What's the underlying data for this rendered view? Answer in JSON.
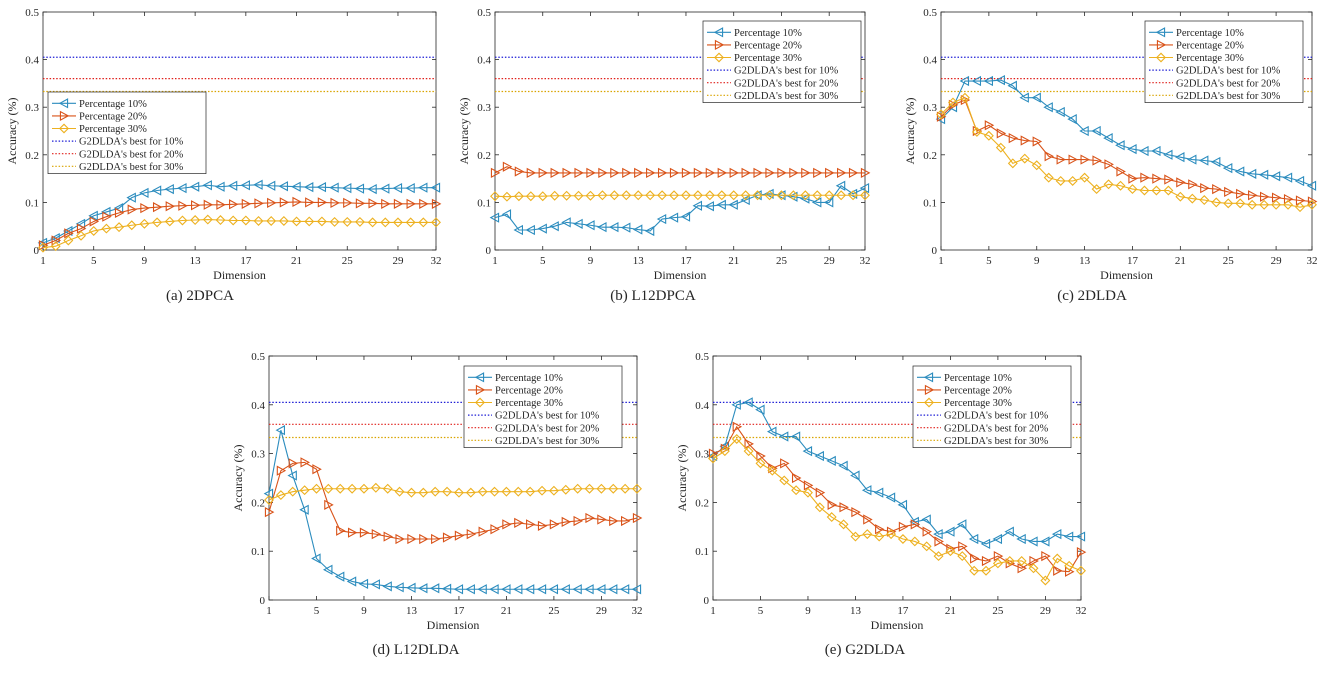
{
  "figure": {
    "legend_labels": [
      "Percentage 10%",
      "Percentage 20%",
      "Percentage 30%",
      "G2DLDA's best for 10%",
      "G2DLDA's best for 20%",
      "G2DLDA's best for 30%"
    ],
    "series_colors": [
      "#2b8cbe",
      "#d95319",
      "#edb120"
    ],
    "reference_colors": [
      "#1f1fd6",
      "#e0201b",
      "#d9a400"
    ],
    "reference_values": [
      0.405,
      0.36,
      0.333
    ]
  },
  "chart_data": [
    {
      "type": "line",
      "caption": "(a) 2DPCA",
      "xlabel": "Dimension",
      "ylabel": "Accuracy (%)",
      "xlim": [
        1,
        32
      ],
      "ylim": [
        0,
        0.5
      ],
      "xticks": [
        1,
        5,
        9,
        13,
        17,
        21,
        25,
        29,
        32
      ],
      "yticks": [
        0,
        0.1,
        0.2,
        0.3,
        0.4,
        0.5
      ],
      "legend_position": "middle-left",
      "x": [
        1,
        2,
        3,
        4,
        5,
        6,
        7,
        8,
        9,
        10,
        11,
        12,
        13,
        14,
        15,
        16,
        17,
        18,
        19,
        20,
        21,
        22,
        23,
        24,
        25,
        26,
        27,
        28,
        29,
        30,
        31,
        32
      ],
      "series": [
        {
          "name": "Percentage 10%",
          "values": [
            0.015,
            0.025,
            0.04,
            0.055,
            0.072,
            0.08,
            0.088,
            0.11,
            0.12,
            0.125,
            0.128,
            0.13,
            0.133,
            0.136,
            0.133,
            0.135,
            0.136,
            0.137,
            0.135,
            0.134,
            0.133,
            0.132,
            0.132,
            0.131,
            0.13,
            0.129,
            0.128,
            0.129,
            0.13,
            0.13,
            0.131,
            0.131
          ]
        },
        {
          "name": "Percentage 20%",
          "values": [
            0.01,
            0.02,
            0.035,
            0.045,
            0.06,
            0.07,
            0.078,
            0.085,
            0.088,
            0.09,
            0.092,
            0.093,
            0.094,
            0.095,
            0.095,
            0.096,
            0.097,
            0.098,
            0.099,
            0.1,
            0.101,
            0.1,
            0.1,
            0.099,
            0.099,
            0.098,
            0.098,
            0.097,
            0.097,
            0.097,
            0.097,
            0.097
          ]
        },
        {
          "name": "Percentage 30%",
          "values": [
            0.005,
            0.008,
            0.02,
            0.03,
            0.04,
            0.045,
            0.048,
            0.052,
            0.055,
            0.058,
            0.06,
            0.062,
            0.063,
            0.064,
            0.063,
            0.062,
            0.062,
            0.061,
            0.061,
            0.061,
            0.06,
            0.06,
            0.06,
            0.059,
            0.059,
            0.059,
            0.058,
            0.058,
            0.058,
            0.058,
            0.058,
            0.058
          ]
        }
      ]
    },
    {
      "type": "line",
      "caption": "(b) L12DPCA",
      "xlabel": "Dimension",
      "ylabel": "Accuracy (%)",
      "xlim": [
        1,
        32
      ],
      "ylim": [
        0,
        0.5
      ],
      "xticks": [
        1,
        5,
        9,
        13,
        17,
        21,
        25,
        29,
        32
      ],
      "yticks": [
        0,
        0.1,
        0.2,
        0.3,
        0.4,
        0.5
      ],
      "legend_position": "top-right",
      "x": [
        1,
        2,
        3,
        4,
        5,
        6,
        7,
        8,
        9,
        10,
        11,
        12,
        13,
        14,
        15,
        16,
        17,
        18,
        19,
        20,
        21,
        22,
        23,
        24,
        25,
        26,
        27,
        28,
        29,
        30,
        31,
        32
      ],
      "series": [
        {
          "name": "Percentage 10%",
          "values": [
            0.068,
            0.075,
            0.042,
            0.042,
            0.045,
            0.05,
            0.058,
            0.055,
            0.052,
            0.048,
            0.048,
            0.047,
            0.043,
            0.04,
            0.065,
            0.068,
            0.07,
            0.093,
            0.092,
            0.095,
            0.095,
            0.105,
            0.115,
            0.118,
            0.115,
            0.112,
            0.108,
            0.1,
            0.1,
            0.135,
            0.118,
            0.13
          ]
        },
        {
          "name": "Percentage 20%",
          "values": [
            0.162,
            0.175,
            0.165,
            0.162,
            0.162,
            0.162,
            0.162,
            0.162,
            0.162,
            0.162,
            0.162,
            0.162,
            0.162,
            0.162,
            0.162,
            0.162,
            0.162,
            0.162,
            0.162,
            0.162,
            0.162,
            0.162,
            0.162,
            0.162,
            0.162,
            0.162,
            0.162,
            0.162,
            0.162,
            0.162,
            0.162,
            0.162
          ]
        },
        {
          "name": "Percentage 30%",
          "values": [
            0.113,
            0.112,
            0.113,
            0.113,
            0.113,
            0.114,
            0.114,
            0.114,
            0.114,
            0.115,
            0.115,
            0.115,
            0.115,
            0.115,
            0.115,
            0.115,
            0.115,
            0.115,
            0.115,
            0.115,
            0.115,
            0.115,
            0.115,
            0.115,
            0.115,
            0.115,
            0.115,
            0.115,
            0.115,
            0.115,
            0.115,
            0.115
          ]
        }
      ]
    },
    {
      "type": "line",
      "caption": "(c) 2DLDA",
      "xlabel": "Dimension",
      "ylabel": "Accuracy (%)",
      "xlim": [
        1,
        32
      ],
      "ylim": [
        0,
        0.5
      ],
      "xticks": [
        1,
        5,
        9,
        13,
        17,
        21,
        25,
        29,
        32
      ],
      "yticks": [
        0,
        0.1,
        0.2,
        0.3,
        0.4,
        0.5
      ],
      "legend_position": "top-right",
      "x": [
        1,
        2,
        3,
        4,
        5,
        6,
        7,
        8,
        9,
        10,
        11,
        12,
        13,
        14,
        15,
        16,
        17,
        18,
        19,
        20,
        21,
        22,
        23,
        24,
        25,
        26,
        27,
        28,
        29,
        30,
        31,
        32
      ],
      "series": [
        {
          "name": "Percentage 10%",
          "values": [
            0.275,
            0.3,
            0.355,
            0.355,
            0.355,
            0.357,
            0.345,
            0.32,
            0.32,
            0.3,
            0.29,
            0.275,
            0.25,
            0.25,
            0.235,
            0.22,
            0.212,
            0.208,
            0.208,
            0.2,
            0.195,
            0.19,
            0.188,
            0.185,
            0.172,
            0.165,
            0.16,
            0.158,
            0.155,
            0.152,
            0.145,
            0.135
          ]
        },
        {
          "name": "Percentage 20%",
          "values": [
            0.28,
            0.305,
            0.315,
            0.25,
            0.262,
            0.245,
            0.235,
            0.23,
            0.228,
            0.197,
            0.19,
            0.19,
            0.19,
            0.188,
            0.18,
            0.165,
            0.15,
            0.152,
            0.15,
            0.148,
            0.142,
            0.138,
            0.13,
            0.128,
            0.122,
            0.118,
            0.115,
            0.112,
            0.11,
            0.107,
            0.104,
            0.102
          ]
        },
        {
          "name": "Percentage 30%",
          "values": [
            0.285,
            0.31,
            0.32,
            0.248,
            0.24,
            0.215,
            0.182,
            0.192,
            0.178,
            0.152,
            0.145,
            0.145,
            0.152,
            0.128,
            0.138,
            0.135,
            0.128,
            0.125,
            0.125,
            0.125,
            0.112,
            0.108,
            0.105,
            0.1,
            0.098,
            0.098,
            0.095,
            0.095,
            0.095,
            0.095,
            0.09,
            0.095
          ]
        }
      ]
    },
    {
      "type": "line",
      "caption": "(d) L12DLDA",
      "xlabel": "Dimension",
      "ylabel": "Accuracy (%)",
      "xlim": [
        1,
        32
      ],
      "ylim": [
        0,
        0.5
      ],
      "xticks": [
        1,
        5,
        9,
        13,
        17,
        21,
        25,
        29,
        32
      ],
      "yticks": [
        0,
        0.1,
        0.2,
        0.3,
        0.4,
        0.5
      ],
      "legend_position": "top-right",
      "x": [
        1,
        2,
        3,
        4,
        5,
        6,
        7,
        8,
        9,
        10,
        11,
        12,
        13,
        14,
        15,
        16,
        17,
        18,
        19,
        20,
        21,
        22,
        23,
        24,
        25,
        26,
        27,
        28,
        29,
        30,
        31,
        32
      ],
      "series": [
        {
          "name": "Percentage 10%",
          "values": [
            0.218,
            0.348,
            0.255,
            0.185,
            0.085,
            0.062,
            0.048,
            0.038,
            0.033,
            0.032,
            0.028,
            0.026,
            0.025,
            0.024,
            0.024,
            0.023,
            0.022,
            0.022,
            0.022,
            0.022,
            0.022,
            0.022,
            0.022,
            0.022,
            0.022,
            0.022,
            0.022,
            0.022,
            0.022,
            0.022,
            0.022,
            0.022
          ]
        },
        {
          "name": "Percentage 20%",
          "values": [
            0.18,
            0.265,
            0.28,
            0.282,
            0.268,
            0.195,
            0.142,
            0.138,
            0.138,
            0.135,
            0.13,
            0.125,
            0.125,
            0.125,
            0.125,
            0.128,
            0.132,
            0.135,
            0.14,
            0.145,
            0.155,
            0.158,
            0.155,
            0.152,
            0.155,
            0.16,
            0.162,
            0.168,
            0.165,
            0.162,
            0.162,
            0.168
          ]
        },
        {
          "name": "Percentage 30%",
          "values": [
            0.205,
            0.215,
            0.222,
            0.225,
            0.228,
            0.228,
            0.228,
            0.228,
            0.228,
            0.23,
            0.228,
            0.222,
            0.22,
            0.22,
            0.222,
            0.222,
            0.22,
            0.22,
            0.222,
            0.222,
            0.222,
            0.222,
            0.222,
            0.224,
            0.224,
            0.226,
            0.228,
            0.228,
            0.228,
            0.228,
            0.228,
            0.228
          ]
        }
      ]
    },
    {
      "type": "line",
      "caption": "(e) G2DLDA",
      "xlabel": "Dimension",
      "ylabel": "Accuracy (%)",
      "xlim": [
        1,
        32
      ],
      "ylim": [
        0,
        0.5
      ],
      "xticks": [
        1,
        5,
        9,
        13,
        17,
        21,
        25,
        29,
        32
      ],
      "yticks": [
        0,
        0.1,
        0.2,
        0.3,
        0.4,
        0.5
      ],
      "legend_position": "top-right",
      "x": [
        1,
        2,
        3,
        4,
        5,
        6,
        7,
        8,
        9,
        10,
        11,
        12,
        13,
        14,
        15,
        16,
        17,
        18,
        19,
        20,
        21,
        22,
        23,
        24,
        25,
        26,
        27,
        28,
        29,
        30,
        31,
        32
      ],
      "series": [
        {
          "name": "Percentage 10%",
          "values": [
            0.295,
            0.315,
            0.4,
            0.405,
            0.39,
            0.345,
            0.335,
            0.335,
            0.305,
            0.295,
            0.285,
            0.275,
            0.255,
            0.225,
            0.22,
            0.21,
            0.195,
            0.16,
            0.165,
            0.135,
            0.14,
            0.155,
            0.125,
            0.115,
            0.125,
            0.14,
            0.125,
            0.12,
            0.12,
            0.135,
            0.13,
            0.13
          ]
        },
        {
          "name": "Percentage 20%",
          "values": [
            0.3,
            0.31,
            0.355,
            0.32,
            0.295,
            0.27,
            0.28,
            0.25,
            0.235,
            0.22,
            0.195,
            0.19,
            0.18,
            0.165,
            0.145,
            0.14,
            0.15,
            0.155,
            0.14,
            0.12,
            0.105,
            0.11,
            0.085,
            0.08,
            0.09,
            0.075,
            0.065,
            0.08,
            0.09,
            0.06,
            0.058,
            0.098
          ]
        },
        {
          "name": "Percentage 30%",
          "values": [
            0.29,
            0.305,
            0.33,
            0.305,
            0.28,
            0.265,
            0.245,
            0.225,
            0.22,
            0.19,
            0.17,
            0.155,
            0.13,
            0.135,
            0.13,
            0.135,
            0.125,
            0.12,
            0.11,
            0.09,
            0.1,
            0.09,
            0.06,
            0.06,
            0.075,
            0.08,
            0.08,
            0.065,
            0.04,
            0.085,
            0.07,
            0.06
          ]
        }
      ]
    }
  ]
}
